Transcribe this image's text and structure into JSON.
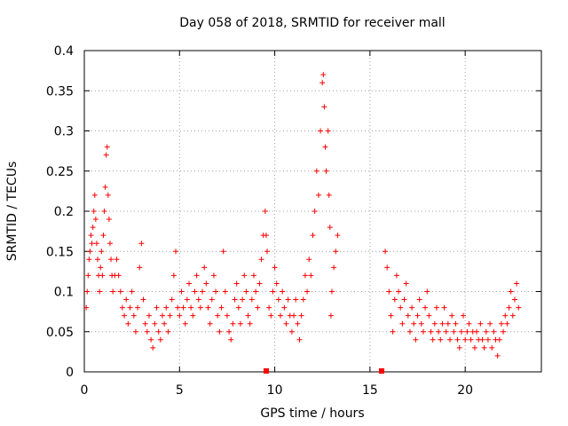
{
  "chart_data": {
    "type": "scatter",
    "title": "Day 058 of 2018, SRMTID for receiver mall",
    "xlabel": "GPS time / hours",
    "ylabel": "SRMTID / TECUs",
    "xlim": [
      0,
      24
    ],
    "ylim": [
      0,
      0.4
    ],
    "xticks": [
      "0",
      "5",
      "10",
      "15",
      "20"
    ],
    "yticks": [
      "0",
      "0.05",
      "0.1",
      "0.15",
      "0.2",
      "0.25",
      "0.3",
      "0.35",
      "0.4"
    ],
    "grid": true,
    "marker": "plus",
    "color": "#ff0000",
    "series": [
      {
        "points": [
          [
            0.1,
            0.08
          ],
          [
            0.15,
            0.1
          ],
          [
            0.2,
            0.12
          ],
          [
            0.25,
            0.14
          ],
          [
            0.3,
            0.15
          ],
          [
            0.35,
            0.17
          ],
          [
            0.4,
            0.16
          ],
          [
            0.45,
            0.18
          ],
          [
            0.5,
            0.2
          ],
          [
            0.55,
            0.22
          ],
          [
            0.6,
            0.19
          ],
          [
            0.65,
            0.16
          ],
          [
            0.7,
            0.14
          ],
          [
            0.75,
            0.12
          ],
          [
            0.8,
            0.1
          ],
          [
            0.85,
            0.13
          ],
          [
            0.9,
            0.15
          ],
          [
            0.95,
            0.12
          ],
          [
            1.0,
            0.17
          ],
          [
            1.05,
            0.2
          ],
          [
            1.1,
            0.23
          ],
          [
            1.15,
            0.27
          ],
          [
            1.2,
            0.28
          ],
          [
            1.25,
            0.22
          ],
          [
            1.3,
            0.19
          ],
          [
            1.35,
            0.16
          ],
          [
            1.4,
            0.14
          ],
          [
            1.45,
            0.12
          ],
          [
            1.5,
            0.1
          ],
          [
            1.6,
            0.12
          ],
          [
            1.7,
            0.14
          ],
          [
            1.8,
            0.12
          ],
          [
            1.9,
            0.1
          ],
          [
            2.0,
            0.08
          ],
          [
            2.1,
            0.07
          ],
          [
            2.2,
            0.09
          ],
          [
            2.3,
            0.06
          ],
          [
            2.4,
            0.08
          ],
          [
            2.5,
            0.1
          ],
          [
            2.6,
            0.07
          ],
          [
            2.7,
            0.05
          ],
          [
            2.8,
            0.08
          ],
          [
            2.9,
            0.13
          ],
          [
            3.0,
            0.16
          ],
          [
            3.1,
            0.09
          ],
          [
            3.2,
            0.06
          ],
          [
            3.3,
            0.05
          ],
          [
            3.4,
            0.07
          ],
          [
            3.5,
            0.04
          ],
          [
            3.6,
            0.03
          ],
          [
            3.7,
            0.06
          ],
          [
            3.8,
            0.08
          ],
          [
            3.9,
            0.05
          ],
          [
            4.0,
            0.04
          ],
          [
            4.1,
            0.07
          ],
          [
            4.2,
            0.06
          ],
          [
            4.3,
            0.08
          ],
          [
            4.4,
            0.05
          ],
          [
            4.5,
            0.07
          ],
          [
            4.6,
            0.09
          ],
          [
            4.7,
            0.12
          ],
          [
            4.8,
            0.15
          ],
          [
            4.9,
            0.08
          ],
          [
            5.0,
            0.07
          ],
          [
            5.1,
            0.1
          ],
          [
            5.2,
            0.08
          ],
          [
            5.3,
            0.06
          ],
          [
            5.4,
            0.09
          ],
          [
            5.5,
            0.11
          ],
          [
            5.6,
            0.08
          ],
          [
            5.7,
            0.07
          ],
          [
            5.8,
            0.1
          ],
          [
            5.9,
            0.12
          ],
          [
            6.0,
            0.09
          ],
          [
            6.1,
            0.08
          ],
          [
            6.2,
            0.1
          ],
          [
            6.3,
            0.13
          ],
          [
            6.4,
            0.11
          ],
          [
            6.5,
            0.08
          ],
          [
            6.6,
            0.06
          ],
          [
            6.7,
            0.09
          ],
          [
            6.8,
            0.12
          ],
          [
            6.9,
            0.1
          ],
          [
            7.0,
            0.07
          ],
          [
            7.1,
            0.05
          ],
          [
            7.2,
            0.08
          ],
          [
            7.3,
            0.15
          ],
          [
            7.4,
            0.1
          ],
          [
            7.5,
            0.07
          ],
          [
            7.6,
            0.05
          ],
          [
            7.7,
            0.04
          ],
          [
            7.8,
            0.06
          ],
          [
            7.9,
            0.09
          ],
          [
            8.0,
            0.11
          ],
          [
            8.1,
            0.08
          ],
          [
            8.2,
            0.06
          ],
          [
            8.3,
            0.09
          ],
          [
            8.4,
            0.12
          ],
          [
            8.5,
            0.1
          ],
          [
            8.6,
            0.07
          ],
          [
            8.7,
            0.06
          ],
          [
            8.8,
            0.09
          ],
          [
            8.9,
            0.12
          ],
          [
            9.0,
            0.1
          ],
          [
            9.1,
            0.08
          ],
          [
            9.2,
            0.11
          ],
          [
            9.3,
            0.14
          ],
          [
            9.4,
            0.17
          ],
          [
            9.5,
            0.2
          ],
          [
            9.55,
            0.17
          ],
          [
            9.6,
            0.15
          ],
          [
            9.7,
            0.08
          ],
          [
            9.8,
            0.07
          ],
          [
            9.9,
            0.1
          ],
          [
            10.0,
            0.13
          ],
          [
            10.1,
            0.11
          ],
          [
            10.2,
            0.09
          ],
          [
            10.3,
            0.07
          ],
          [
            10.4,
            0.1
          ],
          [
            10.5,
            0.08
          ],
          [
            10.6,
            0.06
          ],
          [
            10.7,
            0.09
          ],
          [
            10.8,
            0.07
          ],
          [
            10.9,
            0.05
          ],
          [
            11.0,
            0.07
          ],
          [
            11.1,
            0.09
          ],
          [
            11.2,
            0.06
          ],
          [
            11.3,
            0.04
          ],
          [
            11.4,
            0.07
          ],
          [
            11.5,
            0.09
          ],
          [
            11.6,
            0.12
          ],
          [
            11.7,
            0.1
          ],
          [
            11.8,
            0.14
          ],
          [
            11.9,
            0.12
          ],
          [
            12.0,
            0.17
          ],
          [
            12.1,
            0.2
          ],
          [
            12.2,
            0.25
          ],
          [
            12.3,
            0.22
          ],
          [
            12.4,
            0.3
          ],
          [
            12.5,
            0.36
          ],
          [
            12.55,
            0.37
          ],
          [
            12.6,
            0.33
          ],
          [
            12.65,
            0.28
          ],
          [
            12.7,
            0.25
          ],
          [
            12.8,
            0.3
          ],
          [
            12.85,
            0.22
          ],
          [
            12.9,
            0.18
          ],
          [
            12.95,
            0.07
          ],
          [
            13.0,
            0.1
          ],
          [
            13.1,
            0.13
          ],
          [
            13.2,
            0.15
          ],
          [
            13.3,
            0.17
          ],
          [
            15.8,
            0.15
          ],
          [
            15.9,
            0.13
          ],
          [
            16.0,
            0.1
          ],
          [
            16.1,
            0.07
          ],
          [
            16.2,
            0.05
          ],
          [
            16.3,
            0.09
          ],
          [
            16.4,
            0.12
          ],
          [
            16.5,
            0.1
          ],
          [
            16.6,
            0.08
          ],
          [
            16.7,
            0.06
          ],
          [
            16.8,
            0.09
          ],
          [
            16.9,
            0.11
          ],
          [
            17.0,
            0.07
          ],
          [
            17.1,
            0.05
          ],
          [
            17.2,
            0.08
          ],
          [
            17.3,
            0.06
          ],
          [
            17.4,
            0.04
          ],
          [
            17.5,
            0.07
          ],
          [
            17.6,
            0.09
          ],
          [
            17.7,
            0.06
          ],
          [
            17.8,
            0.05
          ],
          [
            17.9,
            0.08
          ],
          [
            18.0,
            0.1
          ],
          [
            18.1,
            0.07
          ],
          [
            18.2,
            0.05
          ],
          [
            18.3,
            0.04
          ],
          [
            18.4,
            0.06
          ],
          [
            18.5,
            0.08
          ],
          [
            18.6,
            0.05
          ],
          [
            18.7,
            0.04
          ],
          [
            18.8,
            0.06
          ],
          [
            18.9,
            0.08
          ],
          [
            19.0,
            0.05
          ],
          [
            19.1,
            0.06
          ],
          [
            19.2,
            0.04
          ],
          [
            19.3,
            0.07
          ],
          [
            19.4,
            0.05
          ],
          [
            19.5,
            0.06
          ],
          [
            19.6,
            0.04
          ],
          [
            19.7,
            0.03
          ],
          [
            19.8,
            0.05
          ],
          [
            19.9,
            0.07
          ],
          [
            20.0,
            0.04
          ],
          [
            20.1,
            0.05
          ],
          [
            20.2,
            0.06
          ],
          [
            20.3,
            0.04
          ],
          [
            20.4,
            0.05
          ],
          [
            20.5,
            0.03
          ],
          [
            20.6,
            0.05
          ],
          [
            20.7,
            0.04
          ],
          [
            20.8,
            0.06
          ],
          [
            20.9,
            0.04
          ],
          [
            21.0,
            0.03
          ],
          [
            21.1,
            0.05
          ],
          [
            21.2,
            0.04
          ],
          [
            21.3,
            0.06
          ],
          [
            21.4,
            0.03
          ],
          [
            21.5,
            0.05
          ],
          [
            21.6,
            0.04
          ],
          [
            21.7,
            0.02
          ],
          [
            21.8,
            0.04
          ],
          [
            21.9,
            0.06
          ],
          [
            22.0,
            0.05
          ],
          [
            22.1,
            0.07
          ],
          [
            22.2,
            0.06
          ],
          [
            22.3,
            0.08
          ],
          [
            22.4,
            0.1
          ],
          [
            22.5,
            0.07
          ],
          [
            22.6,
            0.09
          ],
          [
            22.7,
            0.11
          ],
          [
            22.8,
            0.08
          ]
        ]
      }
    ]
  }
}
